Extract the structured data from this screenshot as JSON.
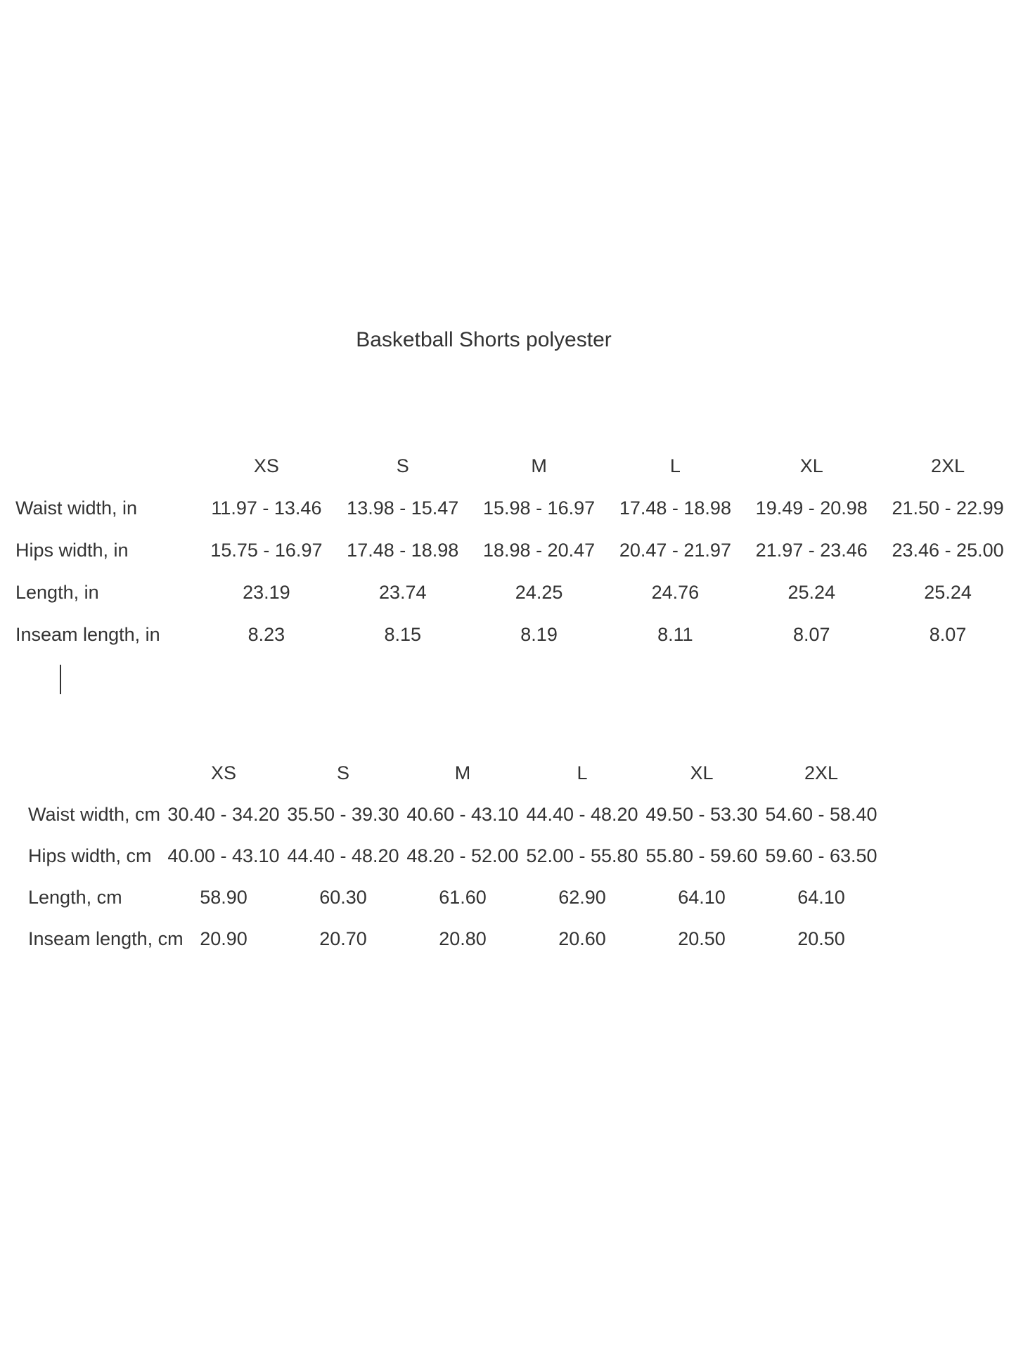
{
  "document": {
    "title": "Basketball Shorts polyester"
  },
  "colors": {
    "text": "#333333",
    "background": "#ffffff"
  },
  "tables": {
    "inches": {
      "sizes": [
        "XS",
        "S",
        "M",
        "L",
        "XL",
        "2XL"
      ],
      "rows": [
        {
          "label": "Waist width, in",
          "values": [
            "11.97 - 13.46",
            "13.98 - 15.47",
            "15.98 - 16.97",
            "17.48 - 18.98",
            "19.49 - 20.98",
            "21.50 - 22.99"
          ]
        },
        {
          "label": "Hips width, in",
          "values": [
            "15.75 - 16.97",
            "17.48 - 18.98",
            "18.98 - 20.47",
            "20.47 - 21.97",
            "21.97 - 23.46",
            "23.46 - 25.00"
          ]
        },
        {
          "label": "Length, in",
          "values": [
            "23.19",
            "23.74",
            "24.25",
            "24.76",
            "25.24",
            "25.24"
          ]
        },
        {
          "label": "Inseam length, in",
          "values": [
            "8.23",
            "8.15",
            "8.19",
            "8.11",
            "8.07",
            "8.07"
          ]
        }
      ]
    },
    "cm": {
      "sizes": [
        "XS",
        "S",
        "M",
        "L",
        "XL",
        "2XL"
      ],
      "rows": [
        {
          "label": "Waist width, cm",
          "values": [
            "30.40 - 34.20",
            "35.50 - 39.30",
            "40.60 - 43.10",
            "44.40 - 48.20",
            "49.50 - 53.30",
            "54.60 - 58.40"
          ]
        },
        {
          "label": "Hips width, cm",
          "values": [
            "40.00 - 43.10",
            "44.40 - 48.20",
            "48.20 - 52.00",
            "52.00 - 55.80",
            "55.80 - 59.60",
            "59.60 - 63.50"
          ]
        },
        {
          "label": "Length, cm",
          "values": [
            "58.90",
            "60.30",
            "61.60",
            "62.90",
            "64.10",
            "64.10"
          ]
        },
        {
          "label": "Inseam length, cm",
          "values": [
            "20.90",
            "20.70",
            "20.80",
            "20.60",
            "20.50",
            "20.50"
          ]
        }
      ]
    }
  }
}
